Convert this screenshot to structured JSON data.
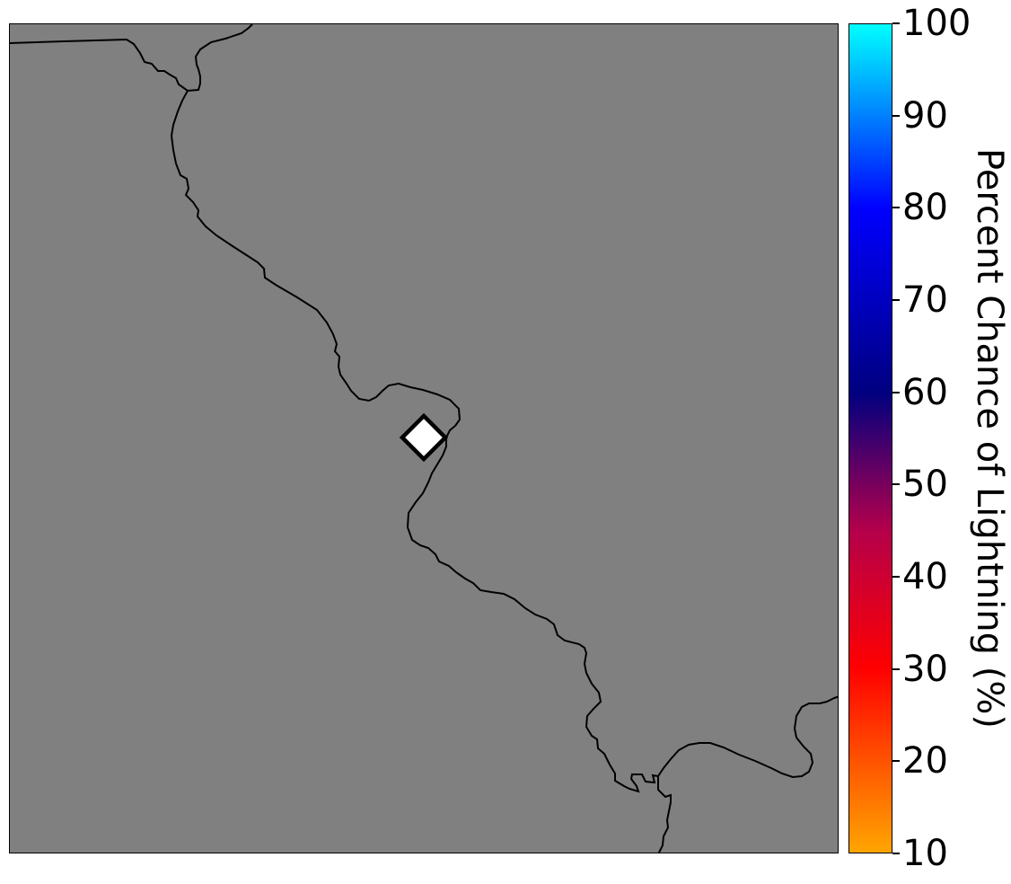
{
  "map": {
    "background_color": "#808080",
    "border_color": "#000000",
    "marker": {
      "shape": "diamond",
      "fill": "#ffffff",
      "stroke": "#000000"
    }
  },
  "colorbar": {
    "label": "Percent Chance of Lightning (%)",
    "ticks": [
      "100",
      "90",
      "80",
      "70",
      "60",
      "50",
      "40",
      "30",
      "20",
      "10"
    ],
    "range": [
      10,
      100
    ],
    "colors": [
      {
        "value": 10,
        "color": "#ffa500"
      },
      {
        "value": 30,
        "color": "#ff0000"
      },
      {
        "value": 45,
        "color": "#b4004b"
      },
      {
        "value": 60,
        "color": "#000080"
      },
      {
        "value": 80,
        "color": "#0000ff"
      },
      {
        "value": 90,
        "color": "#0080ff"
      },
      {
        "value": 100,
        "color": "#00ffff"
      }
    ]
  }
}
